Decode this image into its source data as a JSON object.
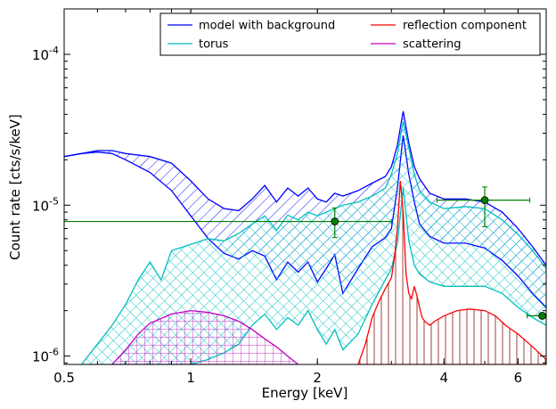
{
  "chart_data": {
    "type": "line",
    "xlabel": "Energy [keV]",
    "ylabel": "Count rate [cts/s/keV]",
    "x_scale": "log",
    "y_scale": "log",
    "xlim": [
      0.5,
      7.0
    ],
    "ylim": [
      8.8e-07,
      0.0002
    ],
    "x_ticks": [
      {
        "value": 0.5,
        "label": "0.5"
      },
      {
        "value": 1,
        "label": "1"
      },
      {
        "value": 2,
        "label": "2"
      },
      {
        "value": 4,
        "label": "4"
      },
      {
        "value": 6,
        "label": "6"
      }
    ],
    "y_ticks": [
      {
        "value": 1e-06,
        "base": "10",
        "exp": "-6"
      },
      {
        "value": 1e-05,
        "base": "10",
        "exp": "-5"
      },
      {
        "value": 0.0001,
        "base": "10",
        "exp": "-4"
      }
    ],
    "legend": {
      "placement": "top-right",
      "columns": 2,
      "entries": [
        {
          "label": "model with background",
          "color": "#0000ff"
        },
        {
          "label": "reflection component",
          "color": "#ff0000"
        },
        {
          "label": "torus",
          "color": "#00bfbf"
        },
        {
          "label": "scattering",
          "color": "#bf00bf"
        }
      ]
    },
    "series": [
      {
        "name": "model with background",
        "color": "#0000ff",
        "hatch": "diagonal",
        "x": [
          0.5,
          0.55,
          0.6,
          0.65,
          0.7,
          0.8,
          0.9,
          1.0,
          1.1,
          1.2,
          1.3,
          1.4,
          1.5,
          1.6,
          1.7,
          1.8,
          1.9,
          2.0,
          2.1,
          2.2,
          2.3,
          2.5,
          2.7,
          2.9,
          3.0,
          3.1,
          3.2,
          3.3,
          3.4,
          3.5,
          3.7,
          4.0,
          4.5,
          5.0,
          5.5,
          6.0,
          6.5,
          7.0
        ],
        "upper": [
          2.1e-05,
          2.2e-05,
          2.3e-05,
          2.3e-05,
          2.2e-05,
          2.1e-05,
          1.9e-05,
          1.45e-05,
          1.1e-05,
          9.5e-06,
          9.2e-06,
          1.1e-05,
          1.35e-05,
          1.05e-05,
          1.3e-05,
          1.15e-05,
          1.3e-05,
          1.1e-05,
          1.05e-05,
          1.2e-05,
          1.15e-05,
          1.25e-05,
          1.4e-05,
          1.55e-05,
          1.8e-05,
          2.5e-05,
          4.2e-05,
          2.6e-05,
          1.8e-05,
          1.5e-05,
          1.2e-05,
          1.1e-05,
          1.1e-05,
          1.05e-05,
          9e-06,
          7e-06,
          5.3e-06,
          4e-06
        ],
        "lower": [
          2.1e-05,
          2.2e-05,
          2.25e-05,
          2.2e-05,
          2e-05,
          1.65e-05,
          1.25e-05,
          8.5e-06,
          6e-06,
          4.8e-06,
          4.4e-06,
          5e-06,
          4.6e-06,
          3.2e-06,
          4.2e-06,
          3.6e-06,
          4.2e-06,
          3.1e-06,
          3.8e-06,
          4.7e-06,
          2.6e-06,
          3.8e-06,
          5.3e-06,
          6.1e-06,
          7e-06,
          1.3e-05,
          2.9e-05,
          1.6e-05,
          1.05e-05,
          7.5e-06,
          6.2e-06,
          5.6e-06,
          5.6e-06,
          5.2e-06,
          4.3e-06,
          3.4e-06,
          2.6e-06,
          2.1e-06
        ]
      },
      {
        "name": "torus",
        "color": "#00bfbf",
        "hatch": "cross",
        "x": [
          0.55,
          0.6,
          0.65,
          0.7,
          0.75,
          0.8,
          0.85,
          0.9,
          1.0,
          1.1,
          1.2,
          1.3,
          1.4,
          1.5,
          1.6,
          1.7,
          1.8,
          1.9,
          2.0,
          2.1,
          2.2,
          2.3,
          2.5,
          2.7,
          2.9,
          3.0,
          3.1,
          3.2,
          3.3,
          3.4,
          3.5,
          3.7,
          4.0,
          4.5,
          5.0,
          5.5,
          6.0,
          6.5,
          7.0
        ],
        "upper": [
          8.8e-07,
          1.2e-06,
          1.6e-06,
          2.2e-06,
          3.2e-06,
          4.2e-06,
          3.2e-06,
          5e-06,
          5.5e-06,
          6e-06,
          5.8e-06,
          6.5e-06,
          7.5e-06,
          8.5e-06,
          6.8e-06,
          8.6e-06,
          8e-06,
          9e-06,
          8.5e-06,
          9e-06,
          9.5e-06,
          1e-05,
          1.05e-05,
          1.15e-05,
          1.3e-05,
          1.6e-05,
          2.2e-05,
          3.6e-05,
          2.4e-05,
          1.6e-05,
          1.25e-05,
          1.05e-05,
          9.5e-06,
          9.8e-06,
          9.5e-06,
          8e-06,
          6.4e-06,
          5e-06,
          3.8e-06
        ],
        "lower": [
          8.8e-07,
          8.8e-07,
          8.8e-07,
          8.8e-07,
          8.8e-07,
          8.8e-07,
          8.8e-07,
          8.8e-07,
          8.8e-07,
          9.5e-07,
          1.05e-06,
          1.2e-06,
          1.6e-06,
          1.9e-06,
          1.5e-06,
          1.8e-06,
          1.6e-06,
          2e-06,
          1.5e-06,
          1.2e-06,
          1.5e-06,
          1.1e-06,
          1.4e-06,
          2.2e-06,
          3.2e-06,
          3.8e-06,
          5.6e-06,
          1.3e-05,
          5.8e-06,
          4e-06,
          3.5e-06,
          3.1e-06,
          2.9e-06,
          2.9e-06,
          2.9e-06,
          2.6e-06,
          2.1e-06,
          1.8e-06,
          1.6e-06
        ]
      },
      {
        "name": "reflection component",
        "color": "#ff0000",
        "hatch": "vertical",
        "x": [
          2.5,
          2.6,
          2.7,
          2.8,
          2.9,
          3.0,
          3.05,
          3.1,
          3.15,
          3.2,
          3.25,
          3.3,
          3.35,
          3.4,
          3.45,
          3.5,
          3.55,
          3.6,
          3.7,
          3.8,
          4.0,
          4.3,
          4.6,
          5.0,
          5.3,
          5.6,
          6.0,
          6.5,
          7.0
        ],
        "upper": [
          8.8e-07,
          1.2e-06,
          1.8e-06,
          2.3e-06,
          2.8e-06,
          3.3e-06,
          4.5e-06,
          7e-06,
          1.45e-05,
          9e-06,
          3.5e-06,
          2.6e-06,
          2.4e-06,
          2.9e-06,
          2.5e-06,
          2.1e-06,
          1.8e-06,
          1.7e-06,
          1.6e-06,
          1.7e-06,
          1.85e-06,
          2e-06,
          2.05e-06,
          2e-06,
          1.85e-06,
          1.6e-06,
          1.4e-06,
          1.15e-06,
          9.5e-07
        ],
        "lower": [
          8.8e-07,
          8.8e-07,
          8.8e-07,
          8.8e-07,
          8.8e-07,
          8.8e-07,
          8.8e-07,
          8.8e-07,
          8.8e-07,
          8.8e-07,
          8.8e-07,
          8.8e-07,
          8.8e-07,
          8.8e-07,
          8.8e-07,
          8.8e-07,
          8.8e-07,
          8.8e-07,
          8.8e-07,
          8.8e-07,
          8.8e-07,
          8.8e-07,
          8.8e-07,
          8.8e-07,
          8.8e-07,
          8.8e-07,
          8.8e-07,
          8.8e-07,
          8.8e-07
        ]
      },
      {
        "name": "scattering",
        "color": "#bf00bf",
        "hatch": "grid",
        "x": [
          0.65,
          0.7,
          0.75,
          0.8,
          0.9,
          1.0,
          1.1,
          1.2,
          1.3,
          1.4,
          1.5,
          1.6,
          1.7,
          1.8
        ],
        "upper": [
          8.8e-07,
          1.1e-06,
          1.4e-06,
          1.65e-06,
          1.9e-06,
          2e-06,
          1.95e-06,
          1.85e-06,
          1.7e-06,
          1.5e-06,
          1.3e-06,
          1.15e-06,
          1e-06,
          8.8e-07
        ],
        "lower": [
          8.8e-07,
          8.8e-07,
          8.8e-07,
          8.8e-07,
          8.8e-07,
          8.8e-07,
          8.8e-07,
          8.8e-07,
          8.8e-07,
          8.8e-07,
          8.8e-07,
          8.8e-07,
          8.8e-07,
          8.8e-07
        ]
      }
    ],
    "data_points": {
      "color": "#008000",
      "points": [
        {
          "x": 2.2,
          "y": 7.8e-06,
          "xerr": [
            0.5,
            3.0
          ],
          "yerr": [
            6.1e-06,
            9.6e-06
          ]
        },
        {
          "x": 5.0,
          "y": 1.08e-05,
          "xerr": [
            3.85,
            6.4
          ],
          "yerr": [
            7.2e-06,
            1.32e-05
          ]
        },
        {
          "x": 6.85,
          "y": 1.85e-06,
          "xerr": [
            6.3,
            7.0
          ],
          "yerr": [
            1.85e-06,
            1.85e-06
          ]
        }
      ]
    }
  }
}
